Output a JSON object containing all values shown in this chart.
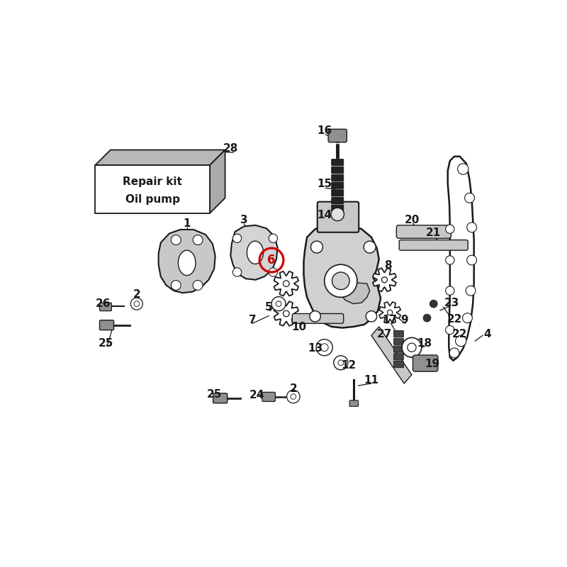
{
  "bg": "#ffffff",
  "lc": "#1a1a1a",
  "mc": "#909090",
  "lmc": "#c8c8c8",
  "dark": "#333333",
  "red": "#cc0000",
  "fig_size": [
    8.0,
    8.0
  ],
  "dpi": 100,
  "repair_kit_text1": "Repair kit",
  "repair_kit_text2": "Oil pump",
  "part_label_28": "28",
  "highlight_number": "6"
}
